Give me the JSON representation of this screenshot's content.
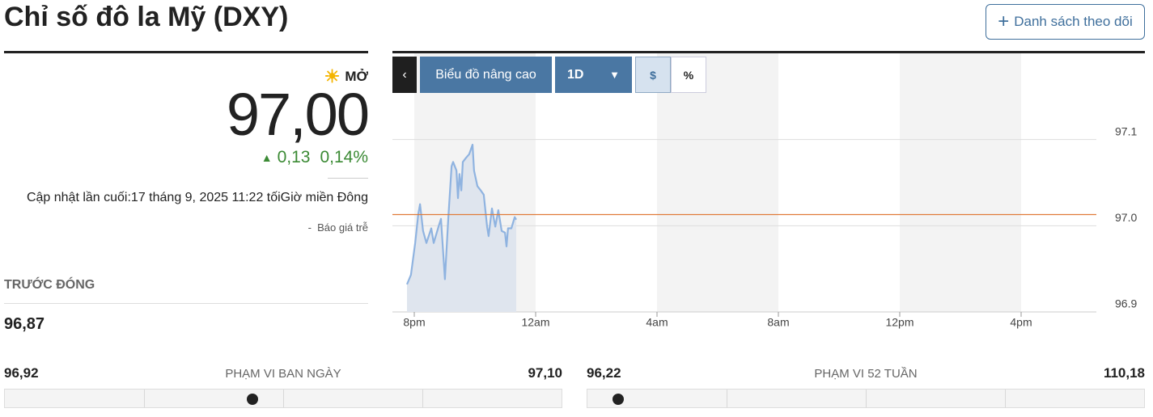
{
  "header": {
    "title": "Chỉ số đô la Mỹ (DXY)",
    "watchlist_button": "Danh sách theo dõi"
  },
  "quote": {
    "status": "MỞ",
    "price": {
      "value": 97.0,
      "label": "97,00"
    },
    "change": "0,13",
    "change_percent": "0,14%",
    "last_updated": "Cập nhật lần cuối:17 tháng 9, 2025 11:22 tốiGiờ miền Đông",
    "delay_note": "Báo giá trễ"
  },
  "previous_close": {
    "label": "TRƯỚC ĐÓNG",
    "value": "96,87"
  },
  "ranges": [
    {
      "label": "PHẠM VI BAN NGÀY",
      "low": {
        "value": 96.92,
        "label": "96,92"
      },
      "high": {
        "value": 97.1,
        "label": "97,10"
      }
    },
    {
      "label": "PHẠM VI 52 TUẦN",
      "low": {
        "value": 96.22,
        "label": "96,22"
      },
      "high": {
        "value": 110.18,
        "label": "110,18"
      }
    }
  ],
  "toolbar": {
    "advanced_chart": "Biểu đồ nâng cao",
    "interval": "1D",
    "modes": [
      "$",
      "%"
    ]
  },
  "chart_data": {
    "type": "line",
    "x": [
      19.76,
      19.89,
      20.03,
      20.13,
      20.19,
      20.29,
      20.4,
      20.56,
      20.64,
      20.8,
      20.88,
      21.01,
      21.12,
      21.23,
      21.28,
      21.39,
      21.44,
      21.49,
      21.55,
      21.6,
      21.71,
      21.81,
      21.92,
      21.97,
      22.08,
      22.19,
      22.29,
      22.4,
      22.45,
      22.56,
      22.67,
      22.77,
      22.88,
      22.99,
      23.04,
      23.09,
      23.2,
      23.31,
      23.36
    ],
    "series": [
      {
        "color": "#8fb3e0",
        "fill_color": "#dfe5ee",
        "values": [
          96.932,
          96.943,
          96.98,
          97.013,
          97.025,
          96.994,
          96.98,
          96.997,
          96.98,
          96.999,
          97.008,
          96.938,
          97.008,
          97.069,
          97.074,
          97.064,
          97.032,
          97.06,
          97.041,
          97.074,
          97.079,
          97.083,
          97.094,
          97.064,
          97.046,
          97.041,
          97.036,
          96.999,
          96.988,
          97.02,
          96.999,
          97.018,
          96.994,
          96.992,
          96.976,
          96.997,
          96.997,
          97.01,
          97.007
        ]
      }
    ],
    "reference_line": {
      "value": 97.013,
      "color": "#e07b39"
    },
    "xlim": [
      19.28,
      42.48
    ],
    "xticks": [
      {
        "value": 20,
        "label": "8pm"
      },
      {
        "value": 24,
        "label": "12am"
      },
      {
        "value": 28,
        "label": "4am"
      },
      {
        "value": 32,
        "label": "8am"
      },
      {
        "value": 36,
        "label": "12pm"
      },
      {
        "value": 40,
        "label": "4pm"
      }
    ],
    "ylim": [
      96.9,
      97.2
    ],
    "yticks": [
      96.9,
      {
        "value": 97,
        "label": "97.0"
      },
      97.1
    ],
    "grid": true,
    "shade_color": "#f3f3f3"
  }
}
